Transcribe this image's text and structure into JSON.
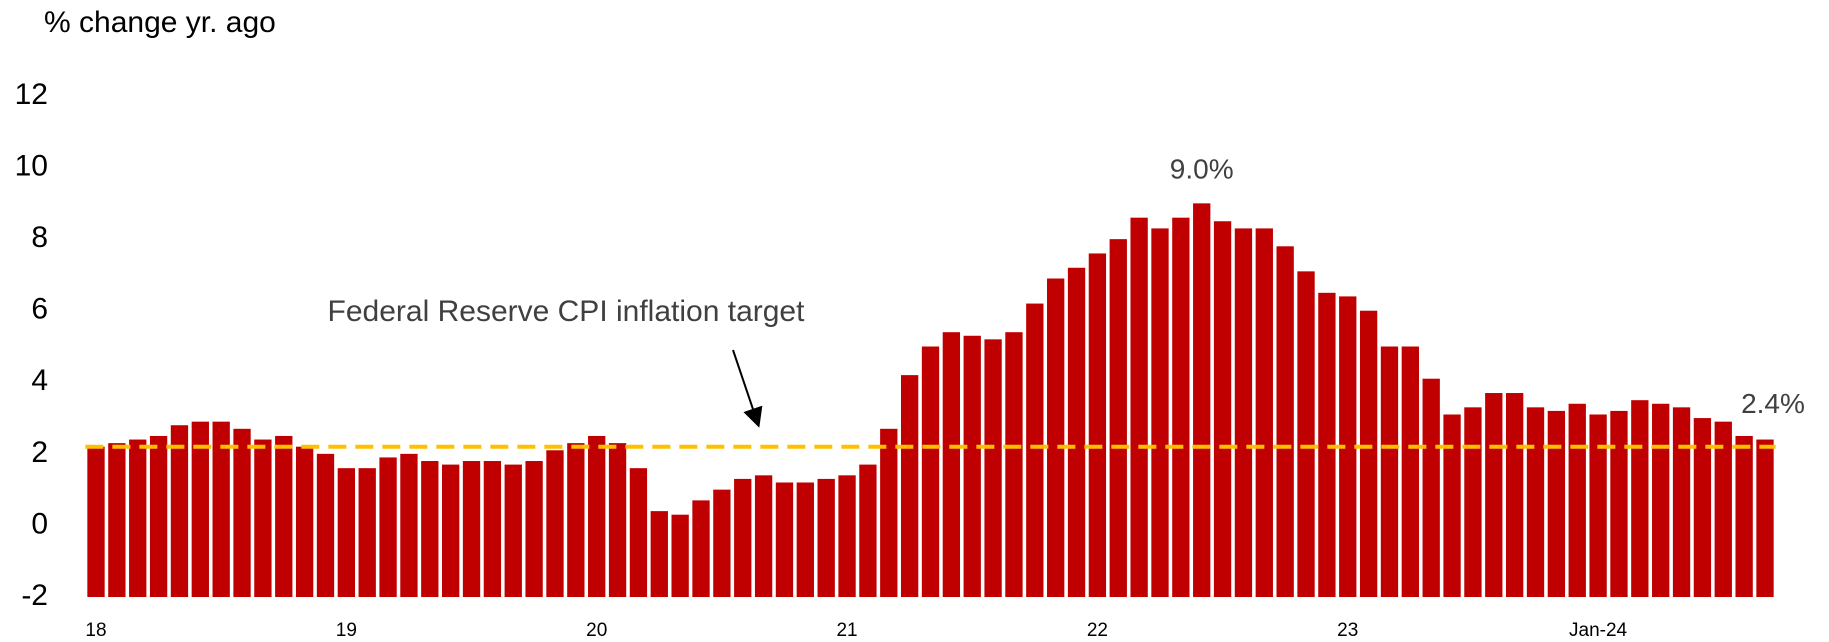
{
  "chart_data": {
    "type": "bar",
    "ylabel": "% change yr. ago",
    "annotation": "Federal Reserve CPI inflation target",
    "color": "#c00000",
    "target": 2.2,
    "target_color": "#ffc000",
    "ylim": [
      -2,
      12
    ],
    "yticks": [
      -2,
      0,
      2,
      4,
      6,
      8,
      10,
      12
    ],
    "grid": false,
    "categories": [
      "18",
      null,
      null,
      null,
      null,
      null,
      null,
      null,
      null,
      null,
      null,
      null,
      "19",
      null,
      null,
      null,
      null,
      null,
      null,
      null,
      null,
      null,
      null,
      null,
      "20",
      null,
      null,
      null,
      null,
      null,
      null,
      null,
      null,
      null,
      null,
      null,
      "21",
      null,
      null,
      null,
      null,
      null,
      null,
      null,
      null,
      null,
      null,
      null,
      "22",
      null,
      null,
      null,
      null,
      null,
      null,
      null,
      null,
      null,
      null,
      null,
      "23",
      null,
      null,
      null,
      null,
      null,
      null,
      null,
      null,
      null,
      null,
      null,
      "Jan-24",
      null,
      null,
      null,
      null,
      null,
      null,
      null,
      null
    ],
    "values": [
      2.2,
      2.3,
      2.4,
      2.5,
      2.8,
      2.9,
      2.9,
      2.7,
      2.4,
      2.5,
      2.2,
      2.0,
      1.6,
      1.6,
      1.9,
      2.0,
      1.8,
      1.7,
      1.8,
      1.8,
      1.7,
      1.8,
      2.1,
      2.3,
      2.5,
      2.3,
      1.6,
      0.4,
      0.3,
      0.7,
      1.0,
      1.3,
      1.4,
      1.2,
      1.2,
      1.3,
      1.4,
      1.7,
      2.7,
      4.2,
      5.0,
      5.4,
      5.3,
      5.2,
      5.4,
      6.2,
      6.9,
      7.2,
      7.6,
      8.0,
      8.6,
      8.3,
      8.6,
      9.0,
      8.5,
      8.3,
      8.3,
      7.8,
      7.1,
      6.5,
      6.4,
      6.0,
      5.0,
      5.0,
      4.1,
      3.1,
      3.3,
      3.7,
      3.7,
      3.3,
      3.2,
      3.4,
      3.1,
      3.2,
      3.5,
      3.4,
      3.3,
      3.0,
      2.9,
      2.5,
      2.4
    ],
    "value_labels": [
      null,
      null,
      null,
      null,
      null,
      null,
      null,
      null,
      null,
      null,
      null,
      null,
      null,
      null,
      null,
      null,
      null,
      null,
      null,
      null,
      null,
      null,
      null,
      null,
      null,
      null,
      null,
      null,
      null,
      null,
      null,
      null,
      null,
      null,
      null,
      null,
      null,
      null,
      null,
      null,
      null,
      null,
      null,
      null,
      null,
      null,
      null,
      null,
      null,
      null,
      null,
      null,
      null,
      "9.0%",
      null,
      null,
      null,
      null,
      null,
      null,
      null,
      null,
      null,
      null,
      null,
      null,
      null,
      null,
      null,
      null,
      null,
      null,
      null,
      null,
      null,
      null,
      null,
      null,
      null,
      null,
      "2.4%"
    ]
  }
}
